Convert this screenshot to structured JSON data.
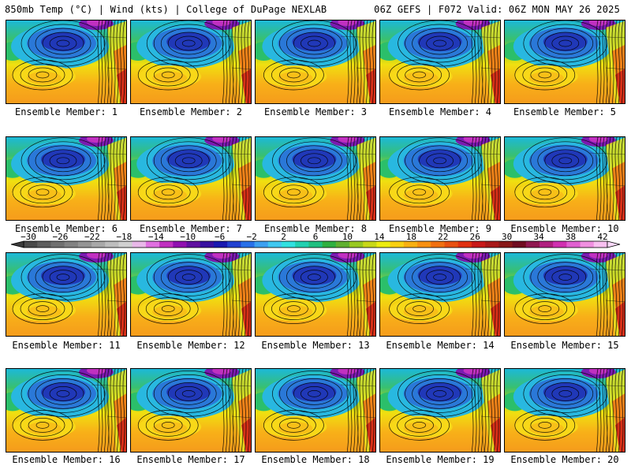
{
  "header": {
    "left": "850mb Temp (°C) | Wind (kts) | College of DuPage NEXLAB",
    "right": "06Z GEFS | F072 Valid: 06Z MON MAY 26 2025"
  },
  "panels": [
    {
      "label": "Ensemble Member: 1"
    },
    {
      "label": "Ensemble Member: 2"
    },
    {
      "label": "Ensemble Member: 3"
    },
    {
      "label": "Ensemble Member: 4"
    },
    {
      "label": "Ensemble Member: 5"
    },
    {
      "label": "Ensemble Member: 6"
    },
    {
      "label": "Ensemble Member: 7"
    },
    {
      "label": "Ensemble Member: 8"
    },
    {
      "label": "Ensemble Member: 9"
    },
    {
      "label": "Ensemble Member: 10"
    },
    {
      "label": "Ensemble Member: 11"
    },
    {
      "label": "Ensemble Member: 12"
    },
    {
      "label": "Ensemble Member: 13"
    },
    {
      "label": "Ensemble Member: 14"
    },
    {
      "label": "Ensemble Member: 15"
    },
    {
      "label": "Ensemble Member: 16"
    },
    {
      "label": "Ensemble Member: 17"
    },
    {
      "label": "Ensemble Member: 18"
    },
    {
      "label": "Ensemble Member: 19"
    },
    {
      "label": "Ensemble Member: 20"
    }
  ],
  "colorbar": {
    "tick_labels": [
      "−30",
      "−26",
      "−22",
      "−18",
      "−14",
      "−10",
      "−6",
      "−2",
      "2",
      "6",
      "10",
      "14",
      "18",
      "22",
      "26",
      "30",
      "34",
      "38",
      "42"
    ],
    "colors": [
      "#4a4a4a",
      "#5e5e5e",
      "#707070",
      "#828282",
      "#959595",
      "#a8a8a8",
      "#bdbdbd",
      "#d0d0d0",
      "#e8b8e8",
      "#e070e0",
      "#c030c0",
      "#9010b0",
      "#6010a0",
      "#3810a0",
      "#1818b0",
      "#2040d0",
      "#2870e8",
      "#3ca0f0",
      "#40c8f0",
      "#30e0e0",
      "#20d0b0",
      "#20c080",
      "#30b040",
      "#60b030",
      "#98c820",
      "#c8d818",
      "#ecec10",
      "#f8d010",
      "#f8b010",
      "#f89010",
      "#f07010",
      "#e85010",
      "#e03010",
      "#c81818",
      "#a81818",
      "#881818",
      "#700c20",
      "#901850",
      "#b02080",
      "#d030b0",
      "#e060d0",
      "#f090e0",
      "#f8c0f0"
    ]
  }
}
